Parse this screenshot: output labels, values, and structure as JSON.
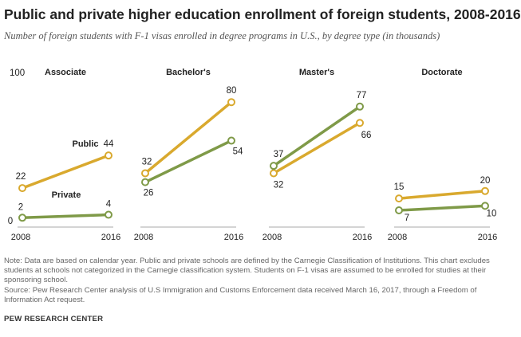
{
  "title": "Public and private higher education enrollment of foreign students, 2008-2016",
  "subtitle": "Number of foreign students with F-1 visas enrolled in degree programs in U.S., by degree type (in thousands)",
  "note": "Note: Data are based on calendar year. Public and private schools are defined by the Carnegie Classification of Institutions. This chart excludes students at schools not categorized in the Carnegie classification system. Students on F-1 visas are assumed to be enrolled for studies at their sponsoring school.",
  "source": "Source: Pew Research Center analysis of U.S Immigration and Customs Enforcement data received March 16, 2017, through a Freedom of Information Act request.",
  "brand": "PEW RESEARCH CENTER",
  "colors": {
    "public": "#d9a92e",
    "private": "#7f9a48",
    "axis": "#aaaaaa"
  },
  "chart_data": {
    "type": "line",
    "x": [
      "2008",
      "2016"
    ],
    "ylim": [
      0,
      100
    ],
    "y_tick_labels": [
      "0",
      "100"
    ],
    "series_labels": {
      "public": "Public",
      "private": "Private"
    },
    "panels": [
      {
        "title": "Associate",
        "public": [
          22,
          44
        ],
        "private": [
          2,
          4
        ],
        "public_labels": [
          "22",
          "44"
        ],
        "private_labels": [
          "2",
          "4"
        ]
      },
      {
        "title": "Bachelor's",
        "public": [
          32,
          80
        ],
        "private": [
          26,
          54
        ],
        "public_labels": [
          "32",
          "80"
        ],
        "private_labels": [
          "26",
          "54"
        ]
      },
      {
        "title": "Master's",
        "public": [
          32,
          66
        ],
        "private": [
          37,
          77
        ],
        "public_labels": [
          "32",
          "66"
        ],
        "private_labels": [
          "37",
          "77"
        ]
      },
      {
        "title": "Doctorate",
        "public": [
          15,
          20
        ],
        "private": [
          7,
          10
        ],
        "public_labels": [
          "15",
          "20"
        ],
        "private_labels": [
          "7",
          "10"
        ]
      }
    ]
  }
}
